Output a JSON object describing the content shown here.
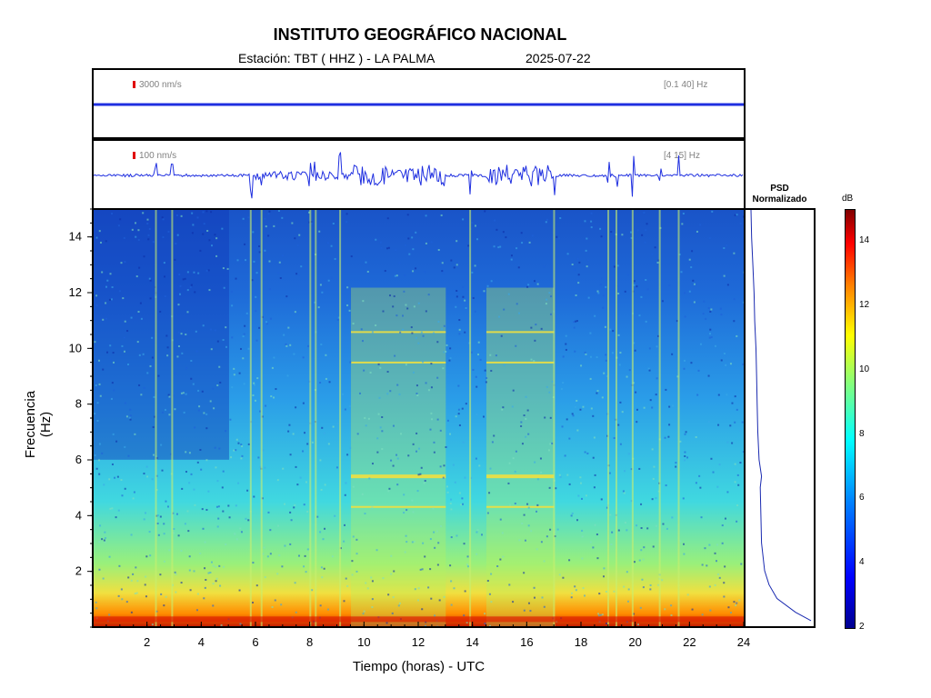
{
  "header": {
    "title": "INSTITUTO GEOGRÁFICO NACIONAL",
    "station": "Estación:  TBT ( HHZ ) - LA PALMA",
    "date": "2025-07-22"
  },
  "traces": [
    {
      "scale_label": "3000 nm/s",
      "band_label": "[0.1 40] Hz"
    },
    {
      "scale_label": "100 nm/s",
      "band_label": "[4 15] Hz"
    }
  ],
  "psd": {
    "title_line1": "PSD",
    "title_line2": "Normalizado"
  },
  "colorbar": {
    "unit": "dB",
    "ticks": [
      "14",
      "12",
      "10",
      "8",
      "6",
      "4",
      "2"
    ],
    "range": [
      2,
      15
    ]
  },
  "chart_data": {
    "type": "heatmap",
    "title": "INSTITUTO GEOGRÁFICO NACIONAL",
    "xlabel": "Tiempo (horas) - UTC",
    "ylabel": "Frecuencia  (Hz)",
    "xlim": [
      0,
      24
    ],
    "ylim": [
      0,
      15
    ],
    "xticks": [
      "2",
      "4",
      "6",
      "8",
      "10",
      "12",
      "14",
      "16",
      "18",
      "20",
      "22",
      "24"
    ],
    "yticks": [
      "2",
      "4",
      "6",
      "8",
      "10",
      "12",
      "14"
    ],
    "colorbar_unit": "dB",
    "zlim": [
      2,
      15
    ],
    "tremor_intervals_hours": [
      [
        9.5,
        13
      ],
      [
        14.5,
        17
      ]
    ],
    "transients_hours": [
      2.3,
      2.9,
      5.8,
      6.2,
      8.0,
      8.2,
      9.1,
      13.9,
      17.0,
      19.0,
      19.3,
      19.9,
      20.9,
      21.6
    ],
    "psd_normalized": {
      "freq": [
        0.2,
        0.5,
        1,
        1.5,
        2,
        3,
        4,
        5,
        5.4,
        6,
        7,
        8,
        9,
        10,
        11,
        12,
        13,
        14,
        15
      ],
      "value": [
        1.0,
        0.75,
        0.45,
        0.32,
        0.25,
        0.2,
        0.19,
        0.18,
        0.2,
        0.16,
        0.14,
        0.13,
        0.12,
        0.11,
        0.09,
        0.08,
        0.06,
        0.04,
        0.03
      ]
    }
  }
}
